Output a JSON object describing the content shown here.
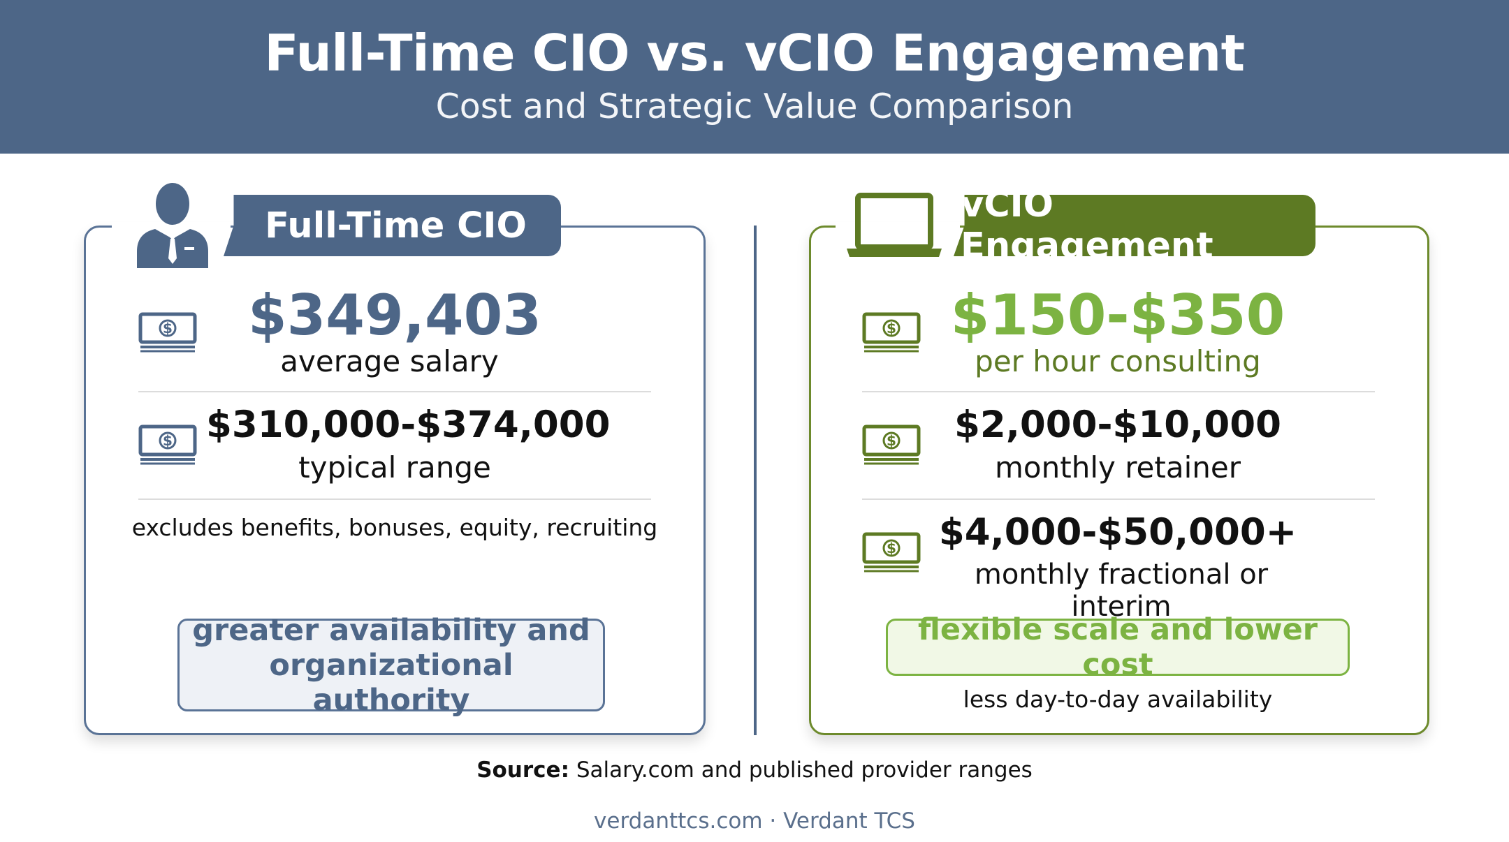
{
  "header": {
    "title": "Full-Time CIO vs. vCIO Engagement",
    "subtitle": "Cost and Strategic Value Comparison"
  },
  "left": {
    "tab_label": "Full-Time CIO",
    "icon": "person-in-suit-icon",
    "stat1_value": "$349,403",
    "stat1_label": "average salary",
    "stat2_value": "$310,000-$374,000",
    "stat2_label": "typical range",
    "note": "excludes benefits, bonuses, equity, recruiting",
    "callout": "greater availability and organizational authority",
    "accent_color": "#4d6687"
  },
  "right": {
    "tab_label": "vCIO Engagement",
    "icon": "laptop-icon",
    "stat1_value": "$150-$350",
    "stat1_label": "per hour consulting",
    "stat2_value": "$2,000-$10,000",
    "stat2_label": "monthly retainer",
    "stat3_value": "$4,000-$50,000+",
    "stat3_label": "monthly fractional or interim",
    "callout": "flexible scale and lower cost",
    "note": "less day-to-day availability",
    "accent_color": "#6d8a2c",
    "highlight_color": "#7cb342"
  },
  "source": {
    "label": "Source:",
    "text": " Salary.com and published provider ranges"
  },
  "footer": "verdanttcs.com · Verdant TCS"
}
